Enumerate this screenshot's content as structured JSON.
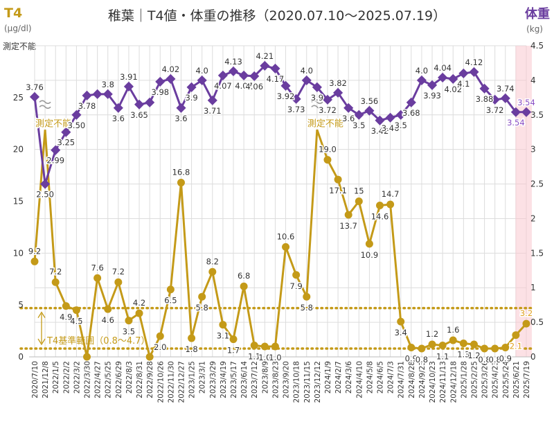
{
  "chart_data": {
    "type": "line",
    "title": "稚葉｜T4値・体重の推移（2020.07.10〜2025.07.19）",
    "y_left": {
      "label": "T4",
      "unit": "(μg/dl)",
      "range": [
        0,
        30
      ],
      "ticks": [
        "0",
        "5",
        "10",
        "15",
        "20",
        "25"
      ],
      "top_label": "測定不能"
    },
    "y_right": {
      "label": "体重",
      "unit": "(kg)",
      "range": [
        0,
        4.5
      ],
      "ticks": [
        "0",
        "0.5",
        "1",
        "1.5",
        "2",
        "2.5",
        "3",
        "3.5",
        "4",
        "4.5"
      ]
    },
    "categories": [
      "2020/7/10",
      "2021/12/8",
      "2022/1/5",
      "2022/2/2",
      "2022/3/2",
      "2022/3/30",
      "2022/4/27",
      "2022/5/25",
      "2022/6/29",
      "2022/8/3",
      "2022/8/31",
      "2022/9/28",
      "2022/10/26",
      "2022/11/30",
      "2022/12/27",
      "2023/1/25",
      "2023/3/1",
      "2023/3/29",
      "2023/4/19",
      "2023/5/17",
      "2023/6/14",
      "2023/7/12",
      "2023/8/9",
      "2023/8/23",
      "2023/9/20",
      "2023/10/18",
      "2023/11/15",
      "2023/12/12",
      "2024/1/9",
      "2024/2/7",
      "2024/3/6",
      "2024/4/10",
      "2024/5/8",
      "2024/6/5",
      "2024/7/3",
      "2024/7/31",
      "2024/8/28",
      "2024/9/23",
      "2024/10/23",
      "2024/11/13",
      "2024/12/18",
      "2025/1/28",
      "2025/2/25",
      "2025/3/26",
      "2025/4/23",
      "2025/5/24",
      "2025/6/21",
      "2025/7/19"
    ],
    "series": [
      {
        "name": "T4",
        "axis": "left",
        "color": "#c49a18",
        "values": [
          9.2,
          null,
          7.2,
          4.9,
          4.5,
          null,
          7.6,
          4.6,
          7.2,
          3.5,
          4.2,
          null,
          2.0,
          6.5,
          16.8,
          1.8,
          5.8,
          8.2,
          3.1,
          1.7,
          6.8,
          1.1,
          1.0,
          1.0,
          10.6,
          7.9,
          5.8,
          null,
          19.0,
          17.1,
          13.7,
          15,
          10.9,
          14.6,
          14.7,
          3.4,
          0.9,
          0.8,
          1.2,
          1.1,
          1.6,
          1.3,
          1.2,
          0.8,
          0.8,
          0.9,
          2.1,
          3.2
        ],
        "labels": [
          "9.2",
          "",
          "7.2",
          "4.9",
          "4.5",
          "",
          "7.6",
          "4.6",
          "7.2",
          "3.5",
          "4.2",
          "",
          "2.0",
          "6.5",
          "16.8",
          "1.8",
          "5.8",
          "8.2",
          "3.1",
          "1.7",
          "6.8",
          "1.1",
          "1.0",
          "1.0",
          "10.6",
          "7.9",
          "5.8",
          "",
          "19.0",
          "17.1",
          "13.7",
          "15",
          "10.9",
          "14.6",
          "14.7",
          "3.4",
          "0.9",
          "0.8",
          "1.2",
          "1.1",
          "1.6",
          "1.3",
          "1.2",
          "0.8",
          "0.8",
          "0.9",
          "2.1",
          "3.2"
        ],
        "unmeasurable_points": [
          1,
          27
        ],
        "unmeasurable_label": "測定不能"
      },
      {
        "name": "体重",
        "axis": "right",
        "color": "#6a3d9f",
        "values": [
          3.76,
          2.5,
          2.99,
          3.25,
          3.5,
          3.78,
          3.8,
          3.8,
          3.6,
          3.91,
          3.65,
          3.68,
          3.98,
          4.02,
          3.6,
          3.9,
          4.0,
          3.71,
          4.07,
          4.13,
          4.07,
          4.06,
          4.21,
          4.17,
          3.92,
          3.73,
          4.0,
          3.9,
          3.72,
          3.82,
          3.6,
          3.5,
          3.56,
          3.42,
          3.46,
          3.5,
          3.68,
          4.0,
          3.93,
          4.04,
          4.02,
          4.1,
          4.12,
          3.88,
          3.72,
          3.74,
          3.54,
          3.54
        ],
        "labels": [
          "3.76",
          "2.50",
          "2.99",
          "3.25",
          "3.50",
          "3.78",
          "",
          "3.8",
          "3.6",
          "3.91",
          "3.65",
          "",
          "3.98",
          "4.02",
          "3.6",
          "3.9",
          "4.0",
          "3.71",
          "4.07",
          "4.13",
          "4.07",
          "4.06",
          "4.21",
          "4.17",
          "3.92",
          "3.73",
          "4.0",
          "3.9",
          "3.72",
          "3.82",
          "3.6",
          "3.5",
          "3.56",
          "3.42",
          "3.46",
          "3.5",
          "3.68",
          "4.0",
          "3.93",
          "4.04",
          "4.02",
          "4.1",
          "4.12",
          "3.88",
          "3.72",
          "3.74",
          "3.54",
          "3.54"
        ]
      }
    ],
    "reference_range": {
      "label": "T4基準範囲（0.8〜4.7）",
      "low": 0.8,
      "high": 4.7
    },
    "highlight_last": true,
    "grid": true
  }
}
